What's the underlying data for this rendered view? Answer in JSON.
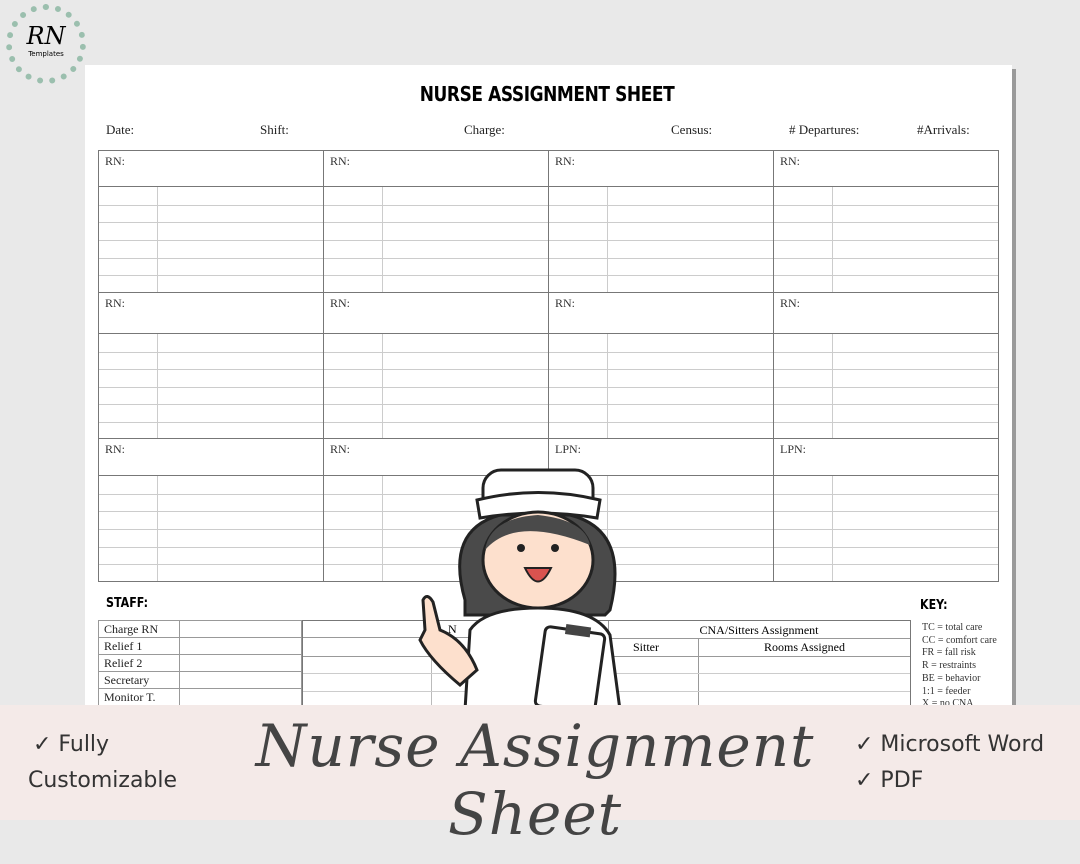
{
  "logo": {
    "text": "RN",
    "sub": "Templates"
  },
  "sheet": {
    "title": "NURSE ASSIGNMENT SHEET",
    "fields": [
      "Date:",
      "Shift:",
      "Charge:",
      "Census:",
      "# Departures:",
      "#Arrivals:"
    ],
    "blocks": [
      [
        "RN:",
        "RN:",
        "RN:",
        "RN:"
      ],
      [
        "RN:",
        "RN:",
        "RN:",
        "RN:"
      ],
      [
        "RN:",
        "RN:",
        "LPN:",
        "LPN:"
      ]
    ],
    "staff_title": "STAFF:",
    "staff_rows": [
      "Charge RN",
      "Relief 1",
      "Relief 2",
      "Secretary",
      "Monitor T."
    ],
    "cna_left_header": "N",
    "cna_title": "CNA/Sitters Assignment",
    "cna_cols": [
      "Sitter",
      "Rooms Assigned"
    ],
    "key_title": "KEY:",
    "key": [
      "TC = total care",
      "CC = comfort care",
      "FR = fall risk",
      "R = restraints",
      "BE = behavior",
      "1:1 = feeder",
      "X = no CNA"
    ]
  },
  "banner": {
    "left": [
      "✓ Fully",
      "Customizable"
    ],
    "title": "Nurse Assignment Sheet",
    "right": [
      "✓ Microsoft Word",
      "✓ PDF"
    ]
  }
}
